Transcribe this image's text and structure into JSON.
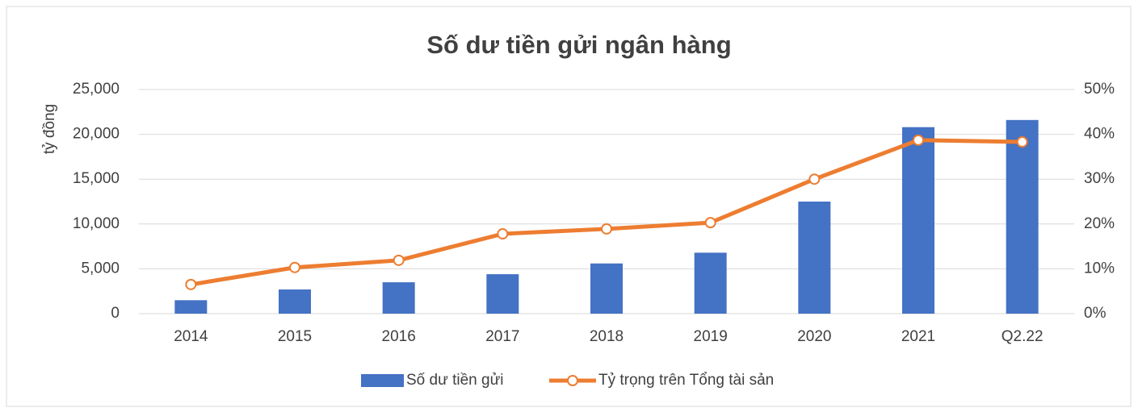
{
  "chart_data": {
    "type": "bar-line",
    "title": "Số dư tiền gửi ngân hàng",
    "y_label": "tỷ đồng",
    "categories": [
      "2014",
      "2015",
      "2016",
      "2017",
      "2018",
      "2019",
      "2020",
      "2021",
      "Q2.22"
    ],
    "series": [
      {
        "name": "Số dư tiền gửi",
        "type": "bar",
        "color": "#4472c4",
        "values": [
          1500,
          2700,
          3500,
          4400,
          5600,
          6800,
          12500,
          20800,
          21600
        ]
      },
      {
        "name": "Tỷ trọng trên Tổng tài sản",
        "type": "line",
        "axis": "y2",
        "color": "#ed7d31",
        "values": [
          6.5,
          10.3,
          11.9,
          17.8,
          18.9,
          20.3,
          30,
          38.7,
          38.3
        ]
      }
    ],
    "ylim": [
      0,
      25000
    ],
    "yticks": [
      0,
      {
        "value": 5000,
        "label": "5,000"
      },
      {
        "value": 10000,
        "label": "10,000"
      },
      {
        "value": 15000,
        "label": "15,000"
      },
      {
        "value": 20000,
        "label": "20,000"
      },
      {
        "value": 25000,
        "label": "25,000"
      }
    ],
    "y2lim": [
      0,
      50
    ],
    "y2ticks": [
      {
        "value": 0,
        "label": "0%"
      },
      {
        "value": 10,
        "label": "10%"
      },
      {
        "value": 20,
        "label": "20%"
      },
      {
        "value": 30,
        "label": "30%"
      },
      {
        "value": 40,
        "label": "40%"
      },
      {
        "value": 50,
        "label": "50%"
      }
    ],
    "grid": true,
    "legend": "bottom"
  }
}
